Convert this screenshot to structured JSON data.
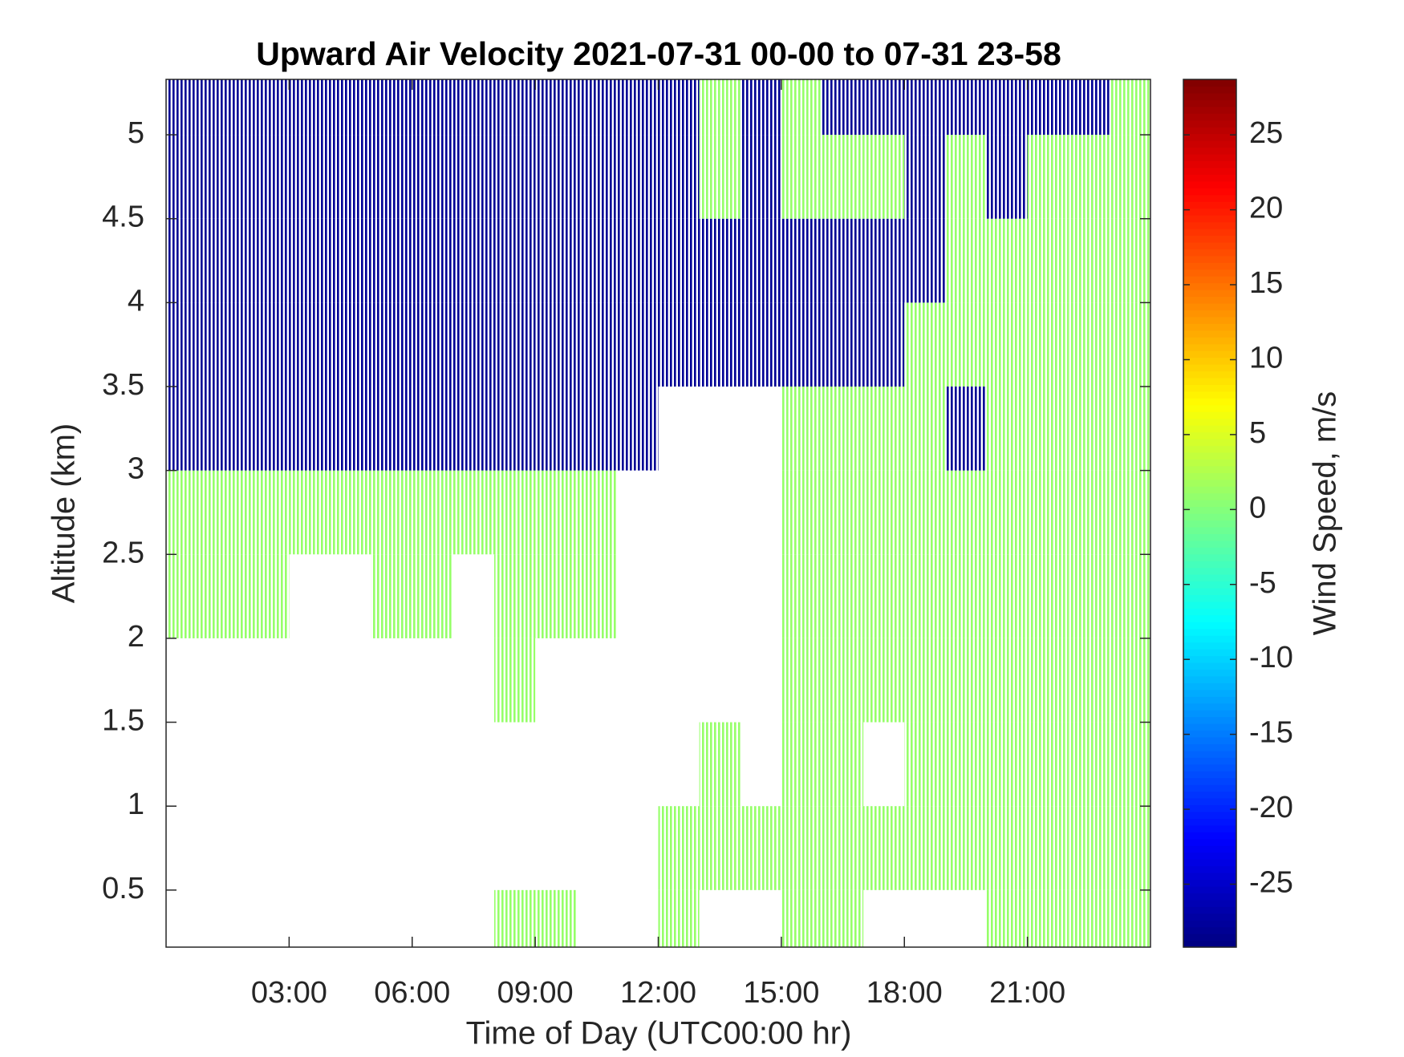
{
  "chart_data": {
    "type": "heatmap",
    "title": "Upward Air Velocity 2021-07-31 00-00 to 07-31 23-58",
    "xlabel": "Time of Day (UTC00:00 hr)",
    "ylabel": "Altitude (km)",
    "colorbar_label": "Wind Speed, m/s",
    "colormap": "jet",
    "xlim": [
      0,
      24
    ],
    "ylim": [
      0.16,
      5.33
    ],
    "clim": [
      -29.2,
      28.7
    ],
    "xticks": [
      {
        "value": 3,
        "label": "03:00"
      },
      {
        "value": 6,
        "label": "06:00"
      },
      {
        "value": 9,
        "label": "09:00"
      },
      {
        "value": 12,
        "label": "12:00"
      },
      {
        "value": 15,
        "label": "15:00"
      },
      {
        "value": 18,
        "label": "18:00"
      },
      {
        "value": 21,
        "label": "21:00"
      }
    ],
    "yticks": [
      0.5,
      1,
      1.5,
      2,
      2.5,
      3,
      3.5,
      4,
      4.5,
      5
    ],
    "cticks": [
      -25,
      -20,
      -15,
      -10,
      -5,
      0,
      5,
      10,
      15,
      20,
      25
    ],
    "x": [
      0.5,
      1.5,
      2.5,
      3.5,
      4.5,
      5.5,
      6.5,
      7.5,
      8.5,
      9.5,
      10.5,
      11.5,
      12.5,
      13.5,
      14.5,
      15.5,
      16.5,
      17.5,
      18.5,
      19.5,
      20.5,
      21.5,
      22.5,
      23.5
    ],
    "y": [
      0.25,
      0.75,
      1.25,
      1.75,
      2.25,
      2.75,
      3.25,
      3.75,
      4.25,
      4.75,
      5.25
    ],
    "z": [
      [
        null,
        null,
        null,
        null,
        null,
        null,
        null,
        null,
        1,
        1,
        null,
        null,
        1,
        null,
        null,
        1,
        1,
        null,
        null,
        null,
        1,
        1,
        1,
        1
      ],
      [
        null,
        null,
        null,
        null,
        null,
        null,
        null,
        null,
        null,
        null,
        null,
        null,
        1,
        1,
        1,
        1,
        1,
        1,
        1,
        1,
        1,
        1,
        1,
        1
      ],
      [
        null,
        null,
        null,
        null,
        null,
        null,
        null,
        null,
        null,
        null,
        null,
        null,
        null,
        1,
        null,
        1,
        1,
        null,
        1,
        1,
        1,
        1,
        1,
        1
      ],
      [
        null,
        null,
        null,
        null,
        null,
        null,
        null,
        null,
        1,
        null,
        null,
        null,
        null,
        null,
        null,
        1,
        1,
        1,
        1,
        1,
        1,
        1,
        1,
        1
      ],
      [
        1,
        1,
        1,
        null,
        null,
        1,
        1,
        null,
        1,
        1,
        1,
        null,
        null,
        null,
        null,
        1,
        1,
        1,
        1,
        1,
        1,
        1,
        1,
        1
      ],
      [
        1,
        1,
        1,
        1,
        1,
        1,
        1,
        1,
        1,
        1,
        1,
        null,
        null,
        null,
        null,
        1,
        1,
        1,
        1,
        1,
        1,
        1,
        1,
        1
      ],
      [
        -28,
        -28,
        -28,
        -28,
        -28,
        -28,
        -28,
        -28,
        -28,
        -28,
        -28,
        -28,
        null,
        null,
        null,
        1,
        1,
        1,
        1,
        -28,
        1,
        1,
        1,
        1
      ],
      [
        -28,
        -28,
        -28,
        -28,
        -28,
        -28,
        -28,
        -28,
        -28,
        -28,
        -28,
        -28,
        -28,
        -28,
        -28,
        -28,
        -28,
        -28,
        1,
        1,
        1,
        1,
        1,
        1
      ],
      [
        -28,
        -28,
        -28,
        -28,
        -28,
        -28,
        -28,
        -28,
        -28,
        -28,
        -28,
        -28,
        -28,
        -28,
        -28,
        -28,
        -28,
        -28,
        -28,
        1,
        1,
        1,
        1,
        1
      ],
      [
        -28,
        -28,
        -28,
        -28,
        -28,
        -28,
        -28,
        -28,
        -28,
        -28,
        -28,
        -28,
        -28,
        1,
        -28,
        1,
        1,
        1,
        -28,
        1,
        -28,
        1,
        1,
        1
      ],
      [
        -28,
        -28,
        -28,
        -28,
        -28,
        -28,
        -28,
        -28,
        -28,
        -28,
        -28,
        -28,
        -28,
        1,
        -28,
        1,
        -28,
        -28,
        -28,
        -28,
        -28,
        -28,
        -28,
        1
      ]
    ]
  }
}
